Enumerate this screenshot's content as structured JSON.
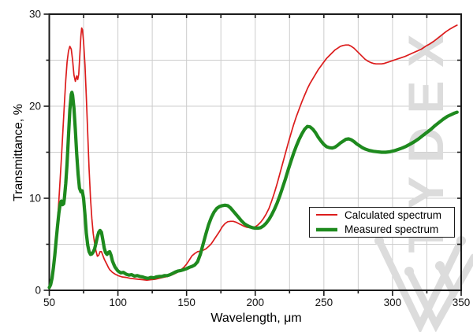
{
  "chart_data": {
    "type": "line",
    "title": "",
    "xlabel": "Wavelength, μm",
    "ylabel": "Transmittance, %",
    "xlim": [
      50,
      350
    ],
    "ylim": [
      0,
      30
    ],
    "x_major_ticks": [
      50,
      100,
      150,
      200,
      250,
      300,
      350
    ],
    "x_minor_step": 25,
    "y_major_ticks": [
      0,
      10,
      20,
      30
    ],
    "y_minor_step": 5,
    "grid": true,
    "grid_color": "#cdcdcd",
    "legend_position": "lower-right",
    "series": [
      {
        "name": "Calculated spectrum",
        "color": "#dc1c1c",
        "width": 1.7,
        "points": [
          [
            50,
            0.2
          ],
          [
            51,
            0.4
          ],
          [
            52,
            0.9
          ],
          [
            53,
            1.8
          ],
          [
            54,
            3.2
          ],
          [
            55,
            5.2
          ],
          [
            56,
            7.5
          ],
          [
            57,
            9.8
          ],
          [
            58,
            12.2
          ],
          [
            59,
            14.8
          ],
          [
            60,
            17.5
          ],
          [
            61,
            20.3
          ],
          [
            62,
            22.8
          ],
          [
            63,
            24.8
          ],
          [
            64,
            26.0
          ],
          [
            65,
            26.5
          ],
          [
            66,
            26.2
          ],
          [
            67,
            25.0
          ],
          [
            68,
            23.4
          ],
          [
            69,
            22.7
          ],
          [
            70,
            23.3
          ],
          [
            70.7,
            22.9
          ],
          [
            71.5,
            23.5
          ],
          [
            72.3,
            25.6
          ],
          [
            73,
            27.6
          ],
          [
            73.6,
            28.5
          ],
          [
            74.2,
            28.3
          ],
          [
            75,
            27.0
          ],
          [
            76,
            24.5
          ],
          [
            77,
            21.0
          ],
          [
            78,
            17.0
          ],
          [
            79,
            13.2
          ],
          [
            80,
            10.0
          ],
          [
            81,
            7.8
          ],
          [
            82,
            6.2
          ],
          [
            83,
            5.1
          ],
          [
            84,
            4.3
          ],
          [
            85,
            3.7
          ],
          [
            86,
            3.8
          ],
          [
            87,
            4.2
          ],
          [
            88,
            4.2
          ],
          [
            89,
            3.8
          ],
          [
            90,
            3.4
          ],
          [
            91,
            3.1
          ],
          [
            92,
            2.8
          ],
          [
            93,
            2.5
          ],
          [
            94,
            2.25
          ],
          [
            95,
            2.1
          ],
          [
            96,
            1.95
          ],
          [
            98,
            1.75
          ],
          [
            100,
            1.6
          ],
          [
            103,
            1.45
          ],
          [
            106,
            1.4
          ],
          [
            109,
            1.3
          ],
          [
            112,
            1.25
          ],
          [
            115,
            1.2
          ],
          [
            118,
            1.15
          ],
          [
            121,
            1.1
          ],
          [
            124,
            1.15
          ],
          [
            127,
            1.2
          ],
          [
            130,
            1.3
          ],
          [
            133,
            1.4
          ],
          [
            136,
            1.5
          ],
          [
            139,
            1.65
          ],
          [
            142,
            1.85
          ],
          [
            145,
            2.1
          ],
          [
            148,
            2.5
          ],
          [
            150,
            2.85
          ],
          [
            152,
            3.3
          ],
          [
            154,
            3.75
          ],
          [
            156,
            4.0
          ],
          [
            158,
            4.2
          ],
          [
            160,
            4.25
          ],
          [
            162,
            4.35
          ],
          [
            164,
            4.5
          ],
          [
            166,
            4.75
          ],
          [
            168,
            5.05
          ],
          [
            170,
            5.5
          ],
          [
            172,
            5.95
          ],
          [
            174,
            6.4
          ],
          [
            176,
            6.9
          ],
          [
            178,
            7.25
          ],
          [
            180,
            7.45
          ],
          [
            182,
            7.5
          ],
          [
            184,
            7.5
          ],
          [
            186,
            7.4
          ],
          [
            188,
            7.25
          ],
          [
            190,
            7.1
          ],
          [
            192,
            6.95
          ],
          [
            194,
            6.85
          ],
          [
            196,
            6.8
          ],
          [
            198,
            6.8
          ],
          [
            200,
            6.9
          ],
          [
            202,
            7.1
          ],
          [
            204,
            7.4
          ],
          [
            206,
            7.8
          ],
          [
            208,
            8.3
          ],
          [
            210,
            8.9
          ],
          [
            212,
            9.7
          ],
          [
            214,
            10.6
          ],
          [
            216,
            11.6
          ],
          [
            218,
            12.7
          ],
          [
            220,
            13.8
          ],
          [
            222,
            14.9
          ],
          [
            224,
            16.0
          ],
          [
            226,
            17.0
          ],
          [
            228,
            18.0
          ],
          [
            230,
            18.9
          ],
          [
            232,
            19.7
          ],
          [
            234,
            20.5
          ],
          [
            236,
            21.2
          ],
          [
            238,
            21.9
          ],
          [
            240,
            22.5
          ],
          [
            242,
            23.0
          ],
          [
            244,
            23.5
          ],
          [
            246,
            24.0
          ],
          [
            248,
            24.4
          ],
          [
            250,
            24.8
          ],
          [
            252,
            25.2
          ],
          [
            254,
            25.5
          ],
          [
            256,
            25.8
          ],
          [
            258,
            26.1
          ],
          [
            260,
            26.3
          ],
          [
            262,
            26.5
          ],
          [
            264,
            26.6
          ],
          [
            266,
            26.65
          ],
          [
            268,
            26.65
          ],
          [
            270,
            26.5
          ],
          [
            272,
            26.3
          ],
          [
            274,
            26.0
          ],
          [
            276,
            25.7
          ],
          [
            278,
            25.4
          ],
          [
            280,
            25.1
          ],
          [
            282,
            24.9
          ],
          [
            284,
            24.75
          ],
          [
            286,
            24.65
          ],
          [
            288,
            24.6
          ],
          [
            290,
            24.6
          ],
          [
            292,
            24.6
          ],
          [
            294,
            24.65
          ],
          [
            296,
            24.75
          ],
          [
            298,
            24.85
          ],
          [
            300,
            24.95
          ],
          [
            303,
            25.1
          ],
          [
            306,
            25.25
          ],
          [
            309,
            25.4
          ],
          [
            312,
            25.6
          ],
          [
            315,
            25.8
          ],
          [
            318,
            26.0
          ],
          [
            321,
            26.2
          ],
          [
            324,
            26.5
          ],
          [
            327,
            26.75
          ],
          [
            330,
            27.05
          ],
          [
            333,
            27.4
          ],
          [
            336,
            27.75
          ],
          [
            339,
            28.1
          ],
          [
            342,
            28.4
          ],
          [
            345,
            28.65
          ],
          [
            347,
            28.8
          ]
        ]
      },
      {
        "name": "Measured spectrum",
        "color": "#1e8a1e",
        "width": 4.2,
        "points": [
          [
            50,
            0.3
          ],
          [
            51,
            0.6
          ],
          [
            52,
            1.3
          ],
          [
            53,
            2.4
          ],
          [
            54,
            3.8
          ],
          [
            55,
            5.4
          ],
          [
            56,
            7.0
          ],
          [
            57,
            8.4
          ],
          [
            58,
            9.4
          ],
          [
            58.8,
            9.7
          ],
          [
            59.6,
            9.3
          ],
          [
            60.5,
            9.4
          ],
          [
            61,
            10.0
          ],
          [
            62,
            11.6
          ],
          [
            63,
            13.8
          ],
          [
            64,
            16.8
          ],
          [
            65,
            19.6
          ],
          [
            66,
            21.3
          ],
          [
            66.5,
            21.5
          ],
          [
            67,
            21.2
          ],
          [
            68,
            19.8
          ],
          [
            69,
            17.4
          ],
          [
            70,
            14.8
          ],
          [
            71,
            12.6
          ],
          [
            72,
            11.1
          ],
          [
            73,
            10.7
          ],
          [
            74,
            10.8
          ],
          [
            75,
            10.0
          ],
          [
            76,
            8.2
          ],
          [
            77,
            6.2
          ],
          [
            78,
            4.9
          ],
          [
            79,
            4.2
          ],
          [
            80,
            3.9
          ],
          [
            81,
            3.95
          ],
          [
            82,
            4.15
          ],
          [
            83,
            4.5
          ],
          [
            84,
            5.1
          ],
          [
            85,
            5.8
          ],
          [
            86,
            6.3
          ],
          [
            87,
            6.5
          ],
          [
            88,
            6.3
          ],
          [
            89,
            5.5
          ],
          [
            90,
            4.6
          ],
          [
            91,
            4.1
          ],
          [
            92,
            3.9
          ],
          [
            93,
            4.1
          ],
          [
            94,
            4.2
          ],
          [
            95,
            3.8
          ],
          [
            96,
            3.2
          ],
          [
            97,
            2.8
          ],
          [
            98,
            2.5
          ],
          [
            99,
            2.3
          ],
          [
            100,
            2.1
          ],
          [
            102,
            1.9
          ],
          [
            104,
            1.95
          ],
          [
            106,
            1.75
          ],
          [
            108,
            1.65
          ],
          [
            110,
            1.7
          ],
          [
            112,
            1.55
          ],
          [
            114,
            1.6
          ],
          [
            116,
            1.5
          ],
          [
            118,
            1.45
          ],
          [
            120,
            1.35
          ],
          [
            122,
            1.3
          ],
          [
            124,
            1.4
          ],
          [
            126,
            1.35
          ],
          [
            128,
            1.45
          ],
          [
            130,
            1.5
          ],
          [
            132,
            1.5
          ],
          [
            134,
            1.6
          ],
          [
            136,
            1.6
          ],
          [
            138,
            1.7
          ],
          [
            140,
            1.85
          ],
          [
            142,
            2.0
          ],
          [
            144,
            2.1
          ],
          [
            146,
            2.15
          ],
          [
            148,
            2.25
          ],
          [
            150,
            2.35
          ],
          [
            152,
            2.5
          ],
          [
            154,
            2.6
          ],
          [
            156,
            2.75
          ],
          [
            158,
            3.1
          ],
          [
            160,
            3.9
          ],
          [
            162,
            5.0
          ],
          [
            164,
            6.1
          ],
          [
            166,
            7.1
          ],
          [
            168,
            7.9
          ],
          [
            170,
            8.5
          ],
          [
            172,
            8.9
          ],
          [
            174,
            9.1
          ],
          [
            176,
            9.2
          ],
          [
            178,
            9.25
          ],
          [
            180,
            9.2
          ],
          [
            182,
            8.95
          ],
          [
            184,
            8.6
          ],
          [
            186,
            8.25
          ],
          [
            188,
            7.9
          ],
          [
            190,
            7.55
          ],
          [
            192,
            7.25
          ],
          [
            194,
            7.05
          ],
          [
            196,
            6.9
          ],
          [
            198,
            6.8
          ],
          [
            200,
            6.75
          ],
          [
            202,
            6.75
          ],
          [
            204,
            6.8
          ],
          [
            206,
            7.0
          ],
          [
            208,
            7.3
          ],
          [
            210,
            7.7
          ],
          [
            212,
            8.2
          ],
          [
            214,
            8.8
          ],
          [
            216,
            9.5
          ],
          [
            218,
            10.3
          ],
          [
            220,
            11.2
          ],
          [
            222,
            12.1
          ],
          [
            224,
            13.1
          ],
          [
            226,
            14.0
          ],
          [
            228,
            14.9
          ],
          [
            230,
            15.7
          ],
          [
            232,
            16.4
          ],
          [
            234,
            17.0
          ],
          [
            236,
            17.5
          ],
          [
            238,
            17.8
          ],
          [
            240,
            17.75
          ],
          [
            242,
            17.5
          ],
          [
            244,
            17.1
          ],
          [
            246,
            16.6
          ],
          [
            248,
            16.2
          ],
          [
            250,
            15.85
          ],
          [
            252,
            15.6
          ],
          [
            254,
            15.5
          ],
          [
            256,
            15.45
          ],
          [
            258,
            15.55
          ],
          [
            260,
            15.75
          ],
          [
            262,
            16.0
          ],
          [
            264,
            16.2
          ],
          [
            266,
            16.4
          ],
          [
            268,
            16.45
          ],
          [
            270,
            16.35
          ],
          [
            272,
            16.15
          ],
          [
            274,
            15.9
          ],
          [
            276,
            15.7
          ],
          [
            278,
            15.5
          ],
          [
            280,
            15.35
          ],
          [
            283,
            15.2
          ],
          [
            286,
            15.1
          ],
          [
            289,
            15.05
          ],
          [
            292,
            15.0
          ],
          [
            295,
            15.0
          ],
          [
            298,
            15.05
          ],
          [
            301,
            15.15
          ],
          [
            304,
            15.3
          ],
          [
            307,
            15.45
          ],
          [
            310,
            15.65
          ],
          [
            313,
            15.9
          ],
          [
            316,
            16.15
          ],
          [
            319,
            16.45
          ],
          [
            322,
            16.8
          ],
          [
            325,
            17.15
          ],
          [
            328,
            17.5
          ],
          [
            331,
            17.9
          ],
          [
            334,
            18.25
          ],
          [
            337,
            18.6
          ],
          [
            340,
            18.9
          ],
          [
            343,
            19.1
          ],
          [
            345,
            19.25
          ],
          [
            347,
            19.35
          ]
        ]
      }
    ]
  },
  "watermark": {
    "text": "TYDEX",
    "color": "#dcdcdc",
    "logo": "w-logo"
  },
  "axis_color": "#1a1a1a",
  "background": "#ffffff"
}
